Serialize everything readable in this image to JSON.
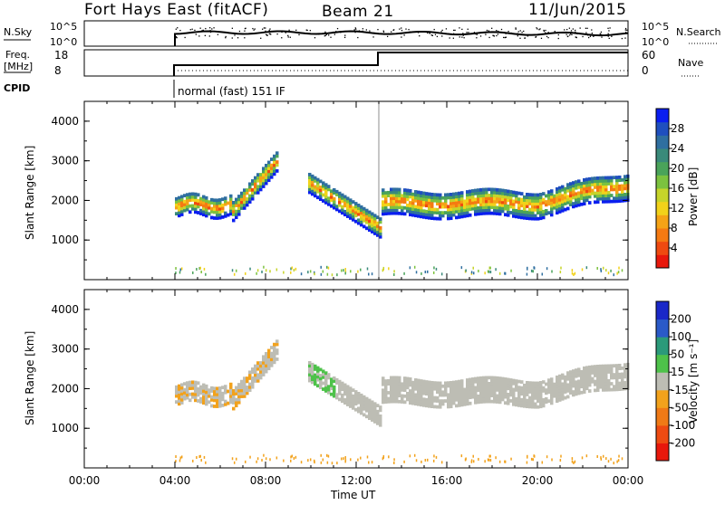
{
  "header": {
    "title": "Fort Hays East (fitACF)",
    "beam": "Beam 21",
    "date": "11/Jun/2015"
  },
  "status_panels": {
    "nsky_label": "N.Sky",
    "nsearch_label": "N.Search",
    "noise_ticks": [
      "10^5",
      "10^0"
    ],
    "freq_label_line1": "Freq.",
    "freq_label_line2": "[MHz]",
    "freq_ticks": [
      "18",
      "8"
    ],
    "nave_label": "Nave",
    "nave_ticks": [
      "60",
      "0"
    ],
    "cpid_label": "CPID",
    "cpid_text": "normal (fast) 151 IF"
  },
  "chart_data": [
    {
      "type": "heatmap",
      "name": "power",
      "ylabel": "Slant Range [km]",
      "xlabel": "",
      "x_range_hours": [
        0,
        24
      ],
      "ylim": [
        0,
        4500
      ],
      "yticks": [
        "1000",
        "2000",
        "3000",
        "4000"
      ],
      "colorbar": {
        "label": "Power [dB]",
        "ticks": [
          "4",
          "8",
          "12",
          "16",
          "20",
          "24",
          "28"
        ],
        "colors": [
          "#0a1ef0",
          "#1f4fbf",
          "#2f6fa0",
          "#3a8a7a",
          "#4aa35a",
          "#7cc23f",
          "#c6d42a",
          "#f2d21a",
          "#f5a316",
          "#f57a12",
          "#ef4a10",
          "#e8180c"
        ]
      },
      "data_start_hour": 4.0,
      "cpid_change_hour": 13.0
    },
    {
      "type": "heatmap",
      "name": "velocity",
      "ylabel": "Slant Range [km]",
      "xlabel": "Time UT",
      "x_range_hours": [
        0,
        24
      ],
      "ylim": [
        0,
        4500
      ],
      "yticks": [
        "1000",
        "2000",
        "3000",
        "4000"
      ],
      "xticks": [
        "00:00",
        "04:00",
        "08:00",
        "12:00",
        "16:00",
        "20:00",
        "00:00"
      ],
      "colorbar": {
        "label": "Velocity [m s⁻¹]",
        "ticks": [
          "200",
          "100",
          "50",
          "15",
          "-15",
          "-50",
          "-100",
          "-200"
        ],
        "colors": [
          "#1a28c8",
          "#2a5ac8",
          "#2b9a7a",
          "#4ec24a",
          "#bdbdb4",
          "#f2a21c",
          "#f07a16",
          "#ee4b12",
          "#e8180c"
        ]
      }
    }
  ],
  "colors": {
    "ground_scatter": "#bdbdb4",
    "axis": "#000000"
  }
}
